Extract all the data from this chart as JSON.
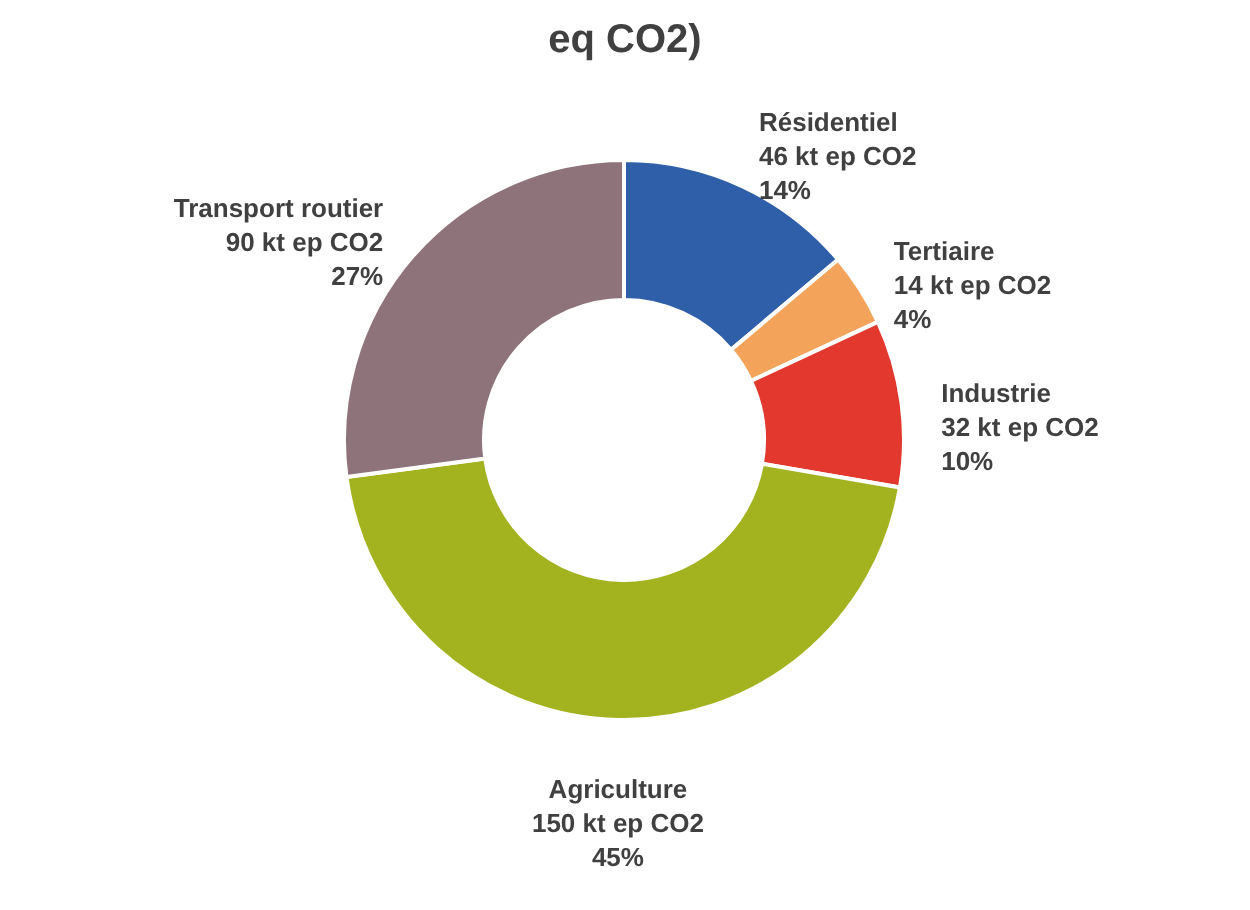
{
  "chart_data": {
    "type": "donut",
    "title": "eq CO2)",
    "categories": [
      "Résidentiel",
      "Tertiaire",
      "Industrie",
      "Agriculture",
      "Transport routier"
    ],
    "values": [
      46,
      14,
      32,
      150,
      90
    ],
    "colors": [
      "#2e5fa8",
      "#f4a35a",
      "#e2382e",
      "#a3b31f",
      "#8e737a"
    ],
    "value_labels": [
      "46 kt ep CO2\n14%",
      "14 kt ep CO2\n4%",
      "32 kt ep CO2\n10%",
      "150 kt ep CO2\n45%",
      "90 kt ep CO2\n27%"
    ],
    "legend": false
  }
}
